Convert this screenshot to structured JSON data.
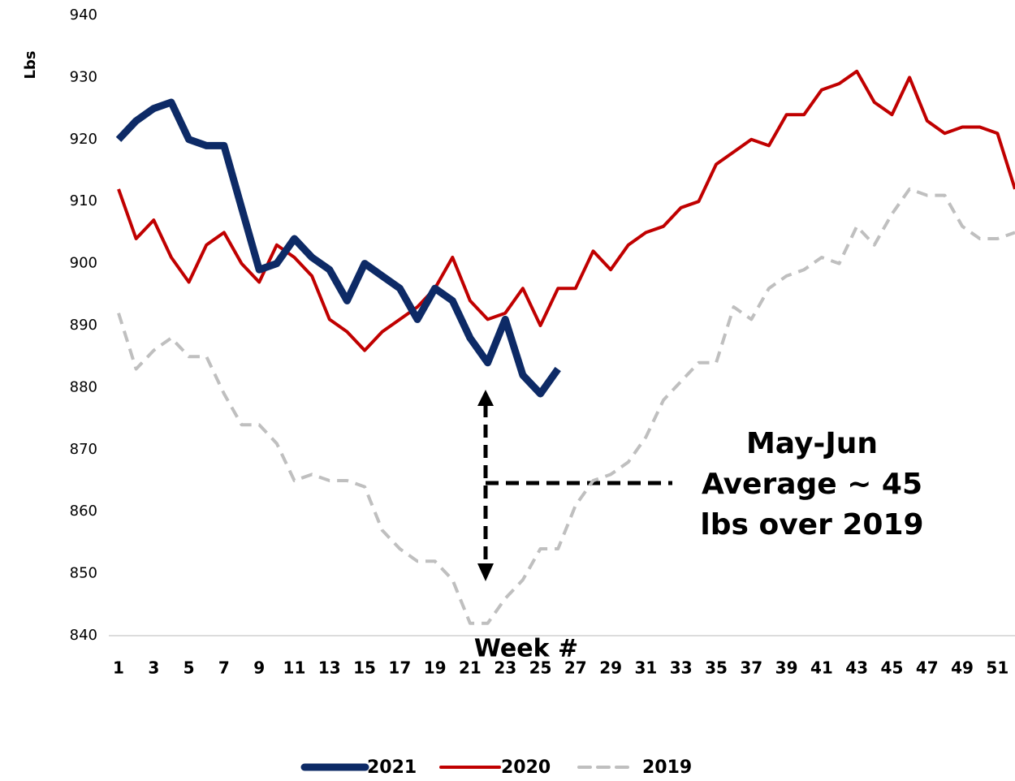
{
  "chart_data": {
    "type": "line",
    "y_label": "Lbs",
    "x_label": "Week #",
    "annotation": [
      "May-Jun",
      "Average ~ 45",
      "lbs over 2019"
    ],
    "x": [
      1,
      2,
      3,
      4,
      5,
      6,
      7,
      8,
      9,
      10,
      11,
      12,
      13,
      14,
      15,
      16,
      17,
      18,
      19,
      20,
      21,
      22,
      23,
      24,
      25,
      26,
      27,
      28,
      29,
      30,
      31,
      32,
      33,
      34,
      35,
      36,
      37,
      38,
      39,
      40,
      41,
      42,
      43,
      44,
      45,
      46,
      47,
      48,
      49,
      50,
      51,
      52
    ],
    "xlim": [
      1,
      52
    ],
    "xticks": [
      1,
      3,
      5,
      7,
      9,
      11,
      13,
      15,
      17,
      19,
      21,
      23,
      25,
      27,
      29,
      31,
      33,
      35,
      37,
      39,
      41,
      43,
      45,
      47,
      49,
      51
    ],
    "ylim": [
      840,
      940
    ],
    "yticks": [
      840,
      850,
      860,
      870,
      880,
      890,
      900,
      910,
      920,
      930,
      940
    ],
    "grid": false,
    "legend": "bottom",
    "series": [
      {
        "name": "2021",
        "color": "#0d2a66",
        "width": 9,
        "dashed": false,
        "values": [
          920,
          923,
          925,
          926,
          920,
          919,
          919,
          909,
          899,
          900,
          904,
          901,
          899,
          894,
          900,
          898,
          896,
          891,
          896,
          894,
          888,
          884,
          891,
          882,
          879,
          883,
          null,
          null,
          null,
          null,
          null,
          null,
          null,
          null,
          null,
          null,
          null,
          null,
          null,
          null,
          null,
          null,
          null,
          null,
          null,
          null,
          null,
          null,
          null,
          null,
          null,
          null
        ]
      },
      {
        "name": "2020",
        "color": "#c00000",
        "width": 4,
        "dashed": false,
        "values": [
          912,
          904,
          907,
          901,
          897,
          903,
          905,
          900,
          897,
          903,
          901,
          898,
          891,
          889,
          886,
          889,
          891,
          893,
          896,
          901,
          894,
          891,
          892,
          896,
          890,
          896,
          896,
          902,
          899,
          903,
          905,
          906,
          909,
          910,
          916,
          918,
          920,
          919,
          924,
          924,
          928,
          929,
          931,
          926,
          924,
          930,
          923,
          921,
          922,
          922,
          921,
          912
        ]
      },
      {
        "name": "2019",
        "color": "#bfbfbf",
        "width": 4,
        "dashed": true,
        "values": [
          892,
          883,
          886,
          888,
          885,
          885,
          879,
          874,
          874,
          871,
          865,
          866,
          865,
          865,
          864,
          857,
          854,
          852,
          852,
          849,
          842,
          842,
          846,
          849,
          854,
          854,
          861,
          865,
          866,
          868,
          872,
          878,
          881,
          884,
          884,
          893,
          891,
          896,
          898,
          899,
          901,
          900,
          906,
          903,
          908,
          912,
          911,
          911,
          906,
          904,
          904,
          905
        ]
      }
    ]
  }
}
